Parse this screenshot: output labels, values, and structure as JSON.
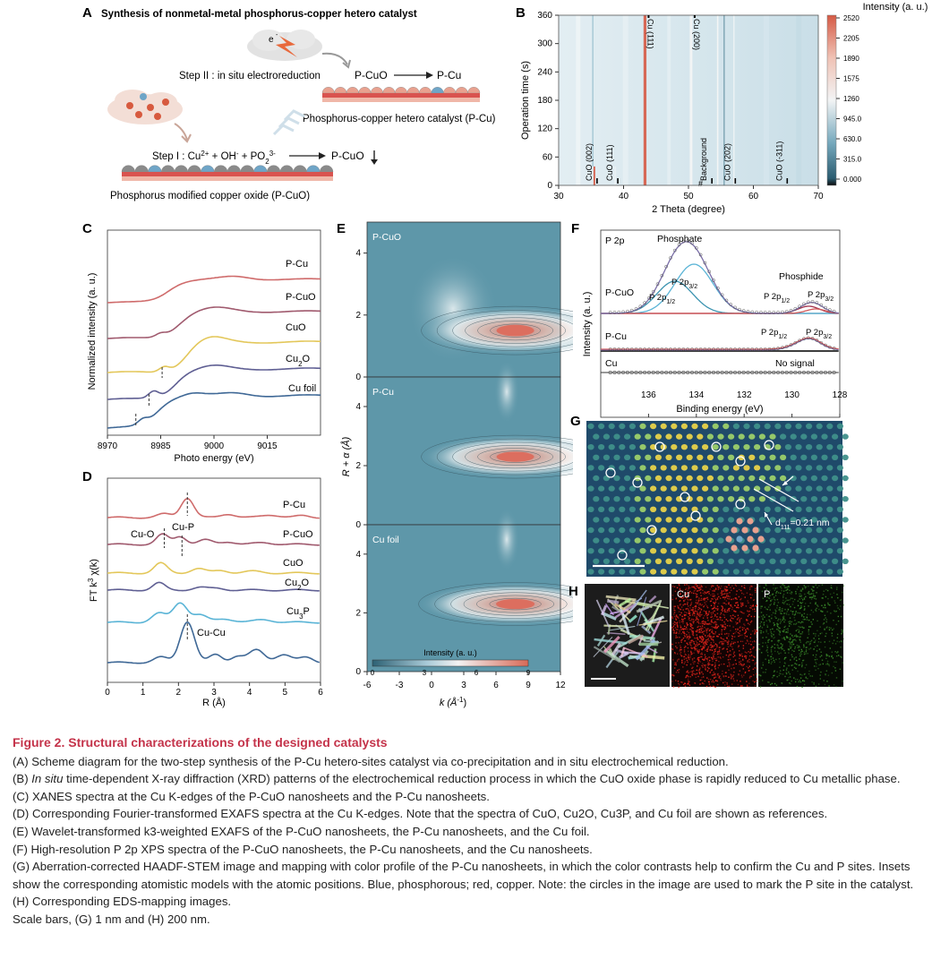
{
  "colors": {
    "accent": "#c4334a",
    "pcu": "#cf6b6b",
    "pcuo": "#a05a6e",
    "cuo": "#e3c75a",
    "cu2o": "#5f5f93",
    "cufoil": "#3f6896",
    "cu3p": "#5ab4d6",
    "teal": "#5a9aac"
  },
  "panel_a": {
    "letter": "A",
    "title": "Synthesis of nonmetal-metal phosphorus-copper hetero catalyst",
    "step2": "Step II : in situ electroreduction",
    "step2_from": "P-CuO",
    "step2_to": "P-Cu",
    "product_label": "Phosphorus-copper hetero catalyst (P-Cu)",
    "step1_prefix": "Step I : Cu",
    "step1_sup1": "2+",
    "step1_mid": " + OH",
    "step1_sup2": "-",
    "step1_mid2": " + PO",
    "step1_sub": "2",
    "step1_sup3": "3-",
    "step1_product": "P-CuO",
    "precursor_label": "Phosphorus modified copper oxide (P-CuO)",
    "electron": "e"
  },
  "panel_b": {
    "letter": "B",
    "ylabel": "Operation time (s)",
    "xlabel": "2 Theta (degree)",
    "colorbar_title": "Intensity (a. u.)",
    "colorbar_ticks": [
      "2520",
      "2205",
      "1890",
      "1575",
      "1260",
      "945.0",
      "630.0",
      "315.0",
      "0.000"
    ],
    "xticks": [
      "30",
      "40",
      "50",
      "60",
      "70"
    ],
    "yticks": [
      "0",
      "60",
      "120",
      "180",
      "240",
      "300",
      "360"
    ],
    "peak_labels": [
      "Cu (111)",
      "Cu (200)",
      "CuO (002)",
      "CuO (111)",
      "Background",
      "CuO (202)",
      "CuO (-311)"
    ],
    "hash": "#"
  },
  "panel_c": {
    "letter": "C",
    "ylabel": "Normalized intensity (a. u.)",
    "xlabel": "Photo energy (eV)",
    "xticks": [
      "8970",
      "8985",
      "9000",
      "9015"
    ],
    "labels": [
      "P-Cu",
      "P-CuO",
      "CuO",
      "Cu",
      "2",
      "O",
      "Cu foil"
    ]
  },
  "panel_d": {
    "letter": "D",
    "ylabel_a": "FT k",
    "ylabel_sup": "3",
    "ylabel_b": " χ(k)",
    "xlabel": "R (Å)",
    "xticks": [
      "0",
      "1",
      "2",
      "3",
      "4",
      "5",
      "6"
    ],
    "labels": [
      "P-Cu",
      "P-CuO",
      "CuO",
      "Cu",
      "2",
      "O",
      "Cu",
      "3",
      "P",
      "Cu-O",
      "Cu-P",
      "Cu-Cu"
    ]
  },
  "panel_e": {
    "letter": "E",
    "ylabel": "R + α (Å)",
    "xlabel": "k (Å",
    "xlabel_sup": "-1",
    "xlabel_end": ")",
    "xticks": [
      "-6",
      "-3",
      "0",
      "3",
      "6",
      "9",
      "12"
    ],
    "yticks": [
      "0",
      "2",
      "4"
    ],
    "subpanels": [
      "P-CuO",
      "P-Cu",
      "Cu foil"
    ],
    "cbar_title": "Intensity (a. u.)",
    "cbar_ticks": [
      "0",
      "3",
      "6",
      "9"
    ]
  },
  "panel_f": {
    "letter": "F",
    "ylabel": "Intensity (a. u.)",
    "xlabel": "Binding energy (eV)",
    "xticks": [
      "136",
      "134",
      "132",
      "130",
      "128"
    ],
    "labels": [
      "P 2p",
      "Phosphate",
      "Phosphide",
      "P-CuO",
      "P 2p",
      "1/2",
      "P 2p",
      "3/2",
      "P 2p",
      "1/2",
      "P 2p",
      "3/2",
      "P-Cu",
      "P 2p",
      "1/2",
      "P 2p",
      "3/2",
      "Cu",
      "No signal"
    ]
  },
  "panel_g": {
    "letter": "G",
    "d_label": "d",
    "d_sub": "111",
    "d_value": "=0.21 nm"
  },
  "panel_h": {
    "letter": "H",
    "tiles": [
      "Cu",
      "P"
    ]
  },
  "caption": {
    "title": "Figure 2.  Structural characterizations of the designed catalysts",
    "A": "(A) Scheme diagram for the two-step synthesis of the P-Cu hetero-sites catalyst via co-precipitation and in situ electrochemical reduction.",
    "B1": "(B) ",
    "B_it": "In situ",
    "B2": " time-dependent X-ray diffraction (XRD) patterns of the electrochemical reduction process in which the CuO oxide phase is rapidly reduced to Cu metallic phase.",
    "C": "(C) XANES spectra at the Cu K-edges of the P-CuO nanosheets and the P-Cu nanosheets.",
    "D": "(D) Corresponding Fourier-transformed EXAFS spectra at the Cu K-edges. Note that the spectra of CuO, Cu2O, Cu3P, and Cu foil are shown as references.",
    "E": "(E) Wavelet-transformed k3-weighted EXAFS of the P-CuO nanosheets, the P-Cu nanosheets, and the Cu foil.",
    "F": "(F) High-resolution P 2p XPS spectra of the P-CuO nanosheets, the P-Cu nanosheets, and the Cu nanosheets.",
    "G": "(G) Aberration-corrected HAADF-STEM image and mapping with color profile of the P-Cu nanosheets, in which the color contrasts help to confirm the Cu and P sites. Insets show the corresponding atomistic models with the atomic positions. Blue, phosphorous; red, copper. Note: the circles in the image are used to mark the P site in the catalyst.",
    "H": "(H) Corresponding EDS-mapping images.",
    "scale": "Scale bars, (G) 1 nm and (H) 200 nm."
  }
}
